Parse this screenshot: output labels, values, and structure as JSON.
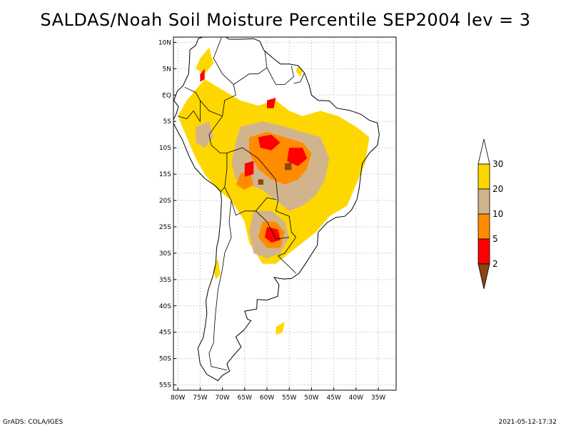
{
  "title": "SALDAS/Noah Soil Moisture Percentile SEP2004 lev = 3",
  "footer": {
    "left": "GrADS: COLA/IGES",
    "right": "2021-05-12-17:32"
  },
  "map": {
    "lon_range": [
      -81,
      -31
    ],
    "lat_range": [
      -56,
      11
    ],
    "lon_ticks": [
      {
        "value": -80,
        "label": "80W"
      },
      {
        "value": -75,
        "label": "75W"
      },
      {
        "value": -70,
        "label": "70W"
      },
      {
        "value": -65,
        "label": "65W"
      },
      {
        "value": -60,
        "label": "60W"
      },
      {
        "value": -55,
        "label": "55W"
      },
      {
        "value": -50,
        "label": "50W"
      },
      {
        "value": -45,
        "label": "45W"
      },
      {
        "value": -40,
        "label": "40W"
      },
      {
        "value": -35,
        "label": "35W"
      }
    ],
    "lat_ticks": [
      {
        "value": 10,
        "label": "10N"
      },
      {
        "value": 5,
        "label": "5N"
      },
      {
        "value": 0,
        "label": "EQ"
      },
      {
        "value": -5,
        "label": "5S"
      },
      {
        "value": -10,
        "label": "10S"
      },
      {
        "value": -15,
        "label": "15S"
      },
      {
        "value": -20,
        "label": "20S"
      },
      {
        "value": -25,
        "label": "25S"
      },
      {
        "value": -30,
        "label": "30S"
      },
      {
        "value": -35,
        "label": "35S"
      },
      {
        "value": -40,
        "label": "40S"
      },
      {
        "value": -45,
        "label": "45S"
      },
      {
        "value": -50,
        "label": "50S"
      },
      {
        "value": -55,
        "label": "55S"
      }
    ],
    "grid": "dotted"
  },
  "legend": {
    "labels": [
      "2",
      "5",
      "10",
      "20",
      "30"
    ],
    "colors": [
      "#8b4513",
      "#ff0000",
      "#ff8c00",
      "#d2b48c",
      "#ffd700",
      "#ffffff"
    ]
  }
}
